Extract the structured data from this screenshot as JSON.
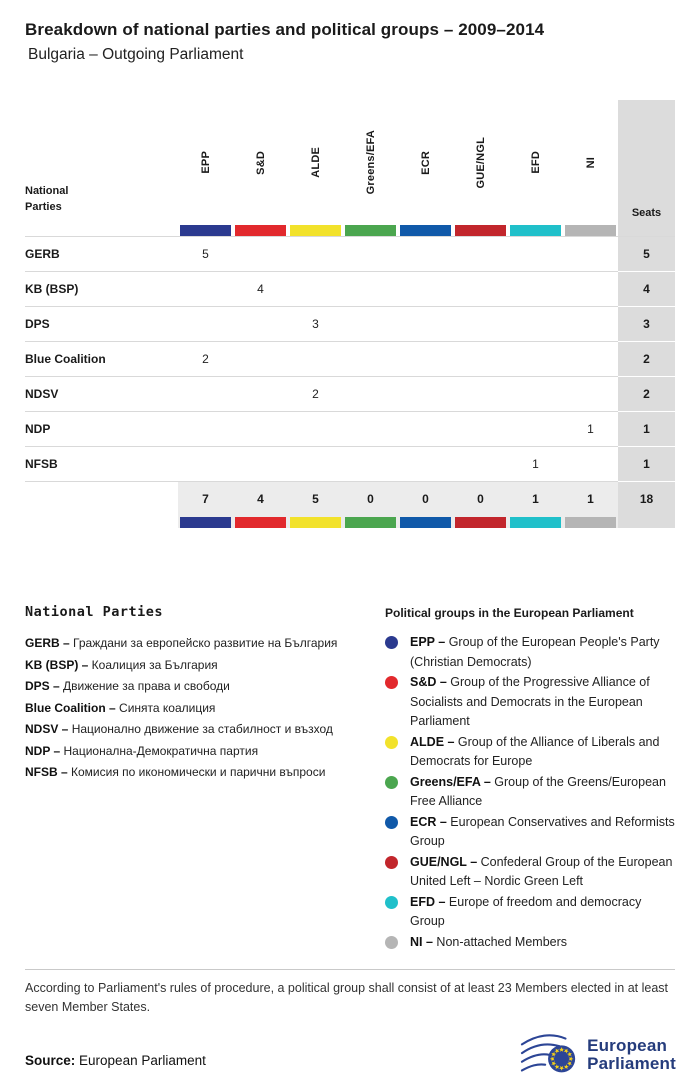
{
  "header": {
    "title": "Breakdown of national parties and political groups – 2009–2014",
    "subtitle": "Bulgaria – Outgoing Parliament"
  },
  "table": {
    "corner_label_line1": "National",
    "corner_label_line2": "Parties",
    "seats_label": "Seats",
    "groups": [
      {
        "id": "epp",
        "label": "EPP",
        "color": "#2b3a8f"
      },
      {
        "id": "sd",
        "label": "S&D",
        "color": "#e2292d"
      },
      {
        "id": "alde",
        "label": "ALDE",
        "color": "#f2e22b"
      },
      {
        "id": "greens-efa",
        "label": "Greens/EFA",
        "color": "#4ba64f"
      },
      {
        "id": "ecr",
        "label": "ECR",
        "color": "#1059a9"
      },
      {
        "id": "gue-ngl",
        "label": "GUE/NGL",
        "color": "#c2262c"
      },
      {
        "id": "efd",
        "label": "EFD",
        "color": "#20c0ca"
      },
      {
        "id": "ni",
        "label": "NI",
        "color": "#b5b5b5"
      }
    ],
    "rows": [
      {
        "party": "GERB",
        "values": [
          "5",
          "",
          "",
          "",
          "",
          "",
          "",
          ""
        ],
        "seats": "5"
      },
      {
        "party": "KB (BSP)",
        "values": [
          "",
          "4",
          "",
          "",
          "",
          "",
          "",
          ""
        ],
        "seats": "4"
      },
      {
        "party": "DPS",
        "values": [
          "",
          "",
          "3",
          "",
          "",
          "",
          "",
          ""
        ],
        "seats": "3"
      },
      {
        "party": "Blue Coalition",
        "values": [
          "2",
          "",
          "",
          "",
          "",
          "",
          "",
          ""
        ],
        "seats": "2"
      },
      {
        "party": "NDSV",
        "values": [
          "",
          "",
          "2",
          "",
          "",
          "",
          "",
          ""
        ],
        "seats": "2"
      },
      {
        "party": "NDP",
        "values": [
          "",
          "",
          "",
          "",
          "",
          "",
          "",
          "1"
        ],
        "seats": "1"
      },
      {
        "party": "NFSB",
        "values": [
          "",
          "",
          "",
          "",
          "",
          "",
          "1",
          ""
        ],
        "seats": "1"
      }
    ],
    "totals": {
      "values": [
        "7",
        "4",
        "5",
        "0",
        "0",
        "0",
        "1",
        "1"
      ],
      "seats": "18"
    }
  },
  "chart_data": {
    "type": "table",
    "title": "Breakdown of national parties and political groups – 2009–2014",
    "subtitle": "Bulgaria – Outgoing Parliament",
    "columns": [
      "EPP",
      "S&D",
      "ALDE",
      "Greens/EFA",
      "ECR",
      "GUE/NGL",
      "EFD",
      "NI",
      "Seats"
    ],
    "rows": [
      {
        "party": "GERB",
        "values": [
          5,
          0,
          0,
          0,
          0,
          0,
          0,
          0
        ],
        "seats": 5
      },
      {
        "party": "KB (BSP)",
        "values": [
          0,
          4,
          0,
          0,
          0,
          0,
          0,
          0
        ],
        "seats": 4
      },
      {
        "party": "DPS",
        "values": [
          0,
          0,
          3,
          0,
          0,
          0,
          0,
          0
        ],
        "seats": 3
      },
      {
        "party": "Blue Coalition",
        "values": [
          2,
          0,
          0,
          0,
          0,
          0,
          0,
          0
        ],
        "seats": 2
      },
      {
        "party": "NDSV",
        "values": [
          0,
          0,
          2,
          0,
          0,
          0,
          0,
          0
        ],
        "seats": 2
      },
      {
        "party": "NDP",
        "values": [
          0,
          0,
          0,
          0,
          0,
          0,
          0,
          1
        ],
        "seats": 1
      },
      {
        "party": "NFSB",
        "values": [
          0,
          0,
          0,
          0,
          0,
          0,
          1,
          0
        ],
        "seats": 1
      }
    ],
    "totals": {
      "values": [
        7,
        4,
        5,
        0,
        0,
        0,
        1,
        1
      ],
      "seats": 18
    }
  },
  "party_legend": {
    "heading": "National Parties",
    "items": [
      {
        "abbr": "GERB –",
        "text": "Граждани за европейско развитие на България"
      },
      {
        "abbr": "KB (BSP) –",
        "text": "Коалиция за България"
      },
      {
        "abbr": "DPS –",
        "text": "Движение за права и свободи"
      },
      {
        "abbr": "Blue Coalition –",
        "text": "Синята коалиция"
      },
      {
        "abbr": "NDSV –",
        "text": "Национално движение за стабилност и възход"
      },
      {
        "abbr": "NDP –",
        "text": "Национална-Демократична партия"
      },
      {
        "abbr": "NFSB –",
        "text": "Комисия по икономически и парични въпроси"
      }
    ]
  },
  "group_legend": {
    "heading": "Political groups in the European Parliament",
    "items": [
      {
        "abbr": "EPP –",
        "text": "Group of the European People's Party (Christian Democrats)",
        "color": "#2b3a8f"
      },
      {
        "abbr": "S&D –",
        "text": "Group of the Progressive Alliance of Socialists and Democrats in the European Parliament",
        "color": "#e2292d"
      },
      {
        "abbr": "ALDE –",
        "text": "Group of the Alliance of Liberals and Democrats for Europe",
        "color": "#f2e22b"
      },
      {
        "abbr": "Greens/EFA –",
        "text": "Group of the Greens/European Free Alliance",
        "color": "#4ba64f"
      },
      {
        "abbr": "ECR –",
        "text": "European Conservatives and Reformists Group",
        "color": "#1059a9"
      },
      {
        "abbr": "GUE/NGL –",
        "text": "Confederal Group of the European United Left – Nordic Green Left",
        "color": "#c2262c"
      },
      {
        "abbr": "EFD –",
        "text": "Europe of freedom and democracy Group",
        "color": "#20c0ca"
      },
      {
        "abbr": "NI –",
        "text": "Non-attached Members",
        "color": "#b5b5b5"
      }
    ]
  },
  "footer": {
    "note": "According to Parliament's rules of procedure, a political group shall consist of at least 23 Members elected in at least seven Member States.",
    "source_label": "Source:",
    "source_value": "European Parliament",
    "logo_line1": "European",
    "logo_line2": "Parliament"
  }
}
